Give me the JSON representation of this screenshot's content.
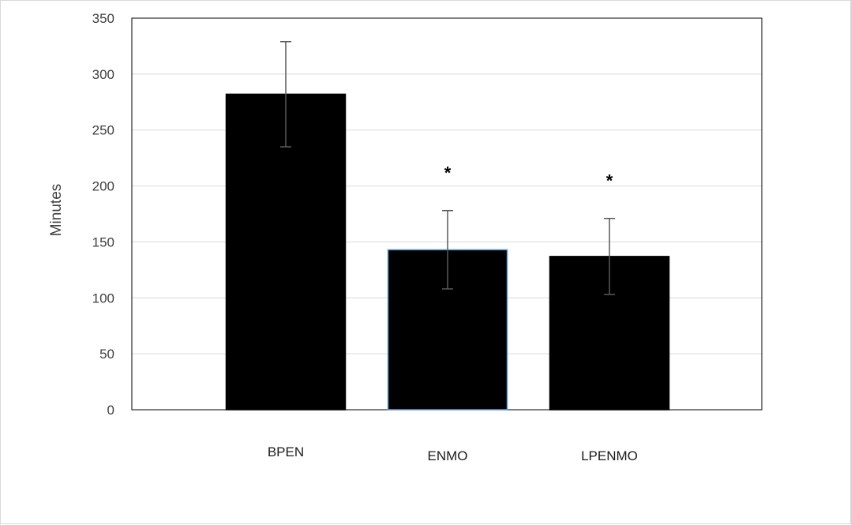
{
  "chart_data": {
    "type": "bar",
    "title": "",
    "xlabel": "",
    "ylabel": "Minutes",
    "ylim": [
      0,
      350
    ],
    "yticks": [
      0,
      50,
      100,
      150,
      200,
      250,
      300,
      350
    ],
    "grid": true,
    "legend": "none",
    "categories": [
      "BPEN",
      "ENMO",
      "LPENMO"
    ],
    "values": [
      282,
      143,
      137
    ],
    "error": [
      47,
      35,
      34
    ],
    "annotations": [
      "",
      "*",
      "*"
    ],
    "bar_colors": [
      "#000000",
      "#000000",
      "#000000"
    ],
    "bar_outlines": [
      "#000000",
      "#5b9bd5",
      "#000000"
    ],
    "grid_color": "#d9d9d9",
    "error_color": "#595959"
  }
}
